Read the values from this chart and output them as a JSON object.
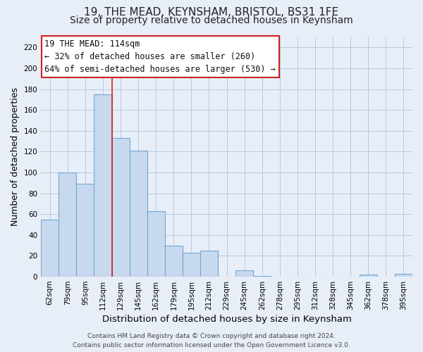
{
  "title": "19, THE MEAD, KEYNSHAM, BRISTOL, BS31 1FE",
  "subtitle": "Size of property relative to detached houses in Keynsham",
  "xlabel": "Distribution of detached houses by size in Keynsham",
  "ylabel": "Number of detached properties",
  "bar_color": "#c8d8ee",
  "bar_edge_color": "#6fa8d0",
  "background_color": "#e8eef8",
  "plot_bg_color": "#e8eef8",
  "categories": [
    "62sqm",
    "79sqm",
    "95sqm",
    "112sqm",
    "129sqm",
    "145sqm",
    "162sqm",
    "179sqm",
    "195sqm",
    "212sqm",
    "229sqm",
    "245sqm",
    "262sqm",
    "278sqm",
    "295sqm",
    "312sqm",
    "328sqm",
    "345sqm",
    "362sqm",
    "378sqm",
    "395sqm"
  ],
  "values": [
    55,
    100,
    89,
    175,
    133,
    121,
    63,
    30,
    23,
    25,
    0,
    6,
    1,
    0,
    0,
    0,
    0,
    0,
    2,
    0,
    3
  ],
  "ylim": [
    0,
    230
  ],
  "yticks": [
    0,
    20,
    40,
    60,
    80,
    100,
    120,
    140,
    160,
    180,
    200,
    220
  ],
  "annotation_title": "19 THE MEAD: 114sqm",
  "annotation_line1": "← 32% of detached houses are smaller (260)",
  "annotation_line2": "64% of semi-detached houses are larger (530) →",
  "vline_x_index": 3.0,
  "footer_line1": "Contains HM Land Registry data © Crown copyright and database right 2024.",
  "footer_line2": "Contains public sector information licensed under the Open Government Licence v3.0.",
  "grid_color": "#b8c8e0",
  "title_fontsize": 11,
  "subtitle_fontsize": 10,
  "xlabel_fontsize": 9.5,
  "ylabel_fontsize": 9,
  "tick_fontsize": 7.5,
  "annotation_fontsize": 8.5,
  "footer_fontsize": 6.5
}
